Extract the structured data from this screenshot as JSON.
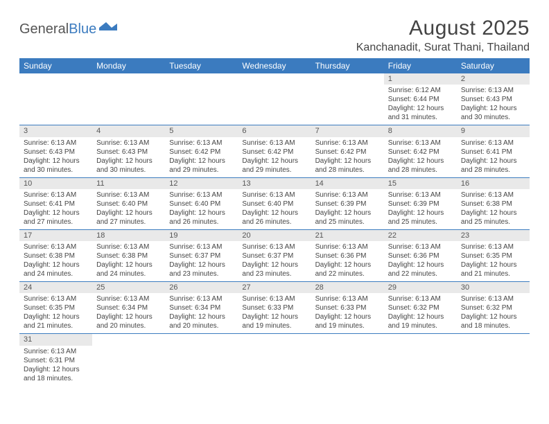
{
  "logo": {
    "part1": "General",
    "part2": "Blue"
  },
  "title": "August 2025",
  "location": "Kanchanadit, Surat Thani, Thailand",
  "weekdays": [
    "Sunday",
    "Monday",
    "Tuesday",
    "Wednesday",
    "Thursday",
    "Friday",
    "Saturday"
  ],
  "colors": {
    "header_bg": "#3b7bbf",
    "header_text": "#ffffff",
    "daynum_bg": "#e9e9e9",
    "rule": "#3b7bbf",
    "text": "#444444",
    "logo_gray": "#555555",
    "logo_blue": "#3b7bbf"
  },
  "weeks": [
    [
      null,
      null,
      null,
      null,
      null,
      {
        "n": "1",
        "sr": "Sunrise: 6:12 AM",
        "ss": "Sunset: 6:44 PM",
        "d1": "Daylight: 12 hours",
        "d2": "and 31 minutes."
      },
      {
        "n": "2",
        "sr": "Sunrise: 6:13 AM",
        "ss": "Sunset: 6:43 PM",
        "d1": "Daylight: 12 hours",
        "d2": "and 30 minutes."
      }
    ],
    [
      {
        "n": "3",
        "sr": "Sunrise: 6:13 AM",
        "ss": "Sunset: 6:43 PM",
        "d1": "Daylight: 12 hours",
        "d2": "and 30 minutes."
      },
      {
        "n": "4",
        "sr": "Sunrise: 6:13 AM",
        "ss": "Sunset: 6:43 PM",
        "d1": "Daylight: 12 hours",
        "d2": "and 30 minutes."
      },
      {
        "n": "5",
        "sr": "Sunrise: 6:13 AM",
        "ss": "Sunset: 6:42 PM",
        "d1": "Daylight: 12 hours",
        "d2": "and 29 minutes."
      },
      {
        "n": "6",
        "sr": "Sunrise: 6:13 AM",
        "ss": "Sunset: 6:42 PM",
        "d1": "Daylight: 12 hours",
        "d2": "and 29 minutes."
      },
      {
        "n": "7",
        "sr": "Sunrise: 6:13 AM",
        "ss": "Sunset: 6:42 PM",
        "d1": "Daylight: 12 hours",
        "d2": "and 28 minutes."
      },
      {
        "n": "8",
        "sr": "Sunrise: 6:13 AM",
        "ss": "Sunset: 6:42 PM",
        "d1": "Daylight: 12 hours",
        "d2": "and 28 minutes."
      },
      {
        "n": "9",
        "sr": "Sunrise: 6:13 AM",
        "ss": "Sunset: 6:41 PM",
        "d1": "Daylight: 12 hours",
        "d2": "and 28 minutes."
      }
    ],
    [
      {
        "n": "10",
        "sr": "Sunrise: 6:13 AM",
        "ss": "Sunset: 6:41 PM",
        "d1": "Daylight: 12 hours",
        "d2": "and 27 minutes."
      },
      {
        "n": "11",
        "sr": "Sunrise: 6:13 AM",
        "ss": "Sunset: 6:40 PM",
        "d1": "Daylight: 12 hours",
        "d2": "and 27 minutes."
      },
      {
        "n": "12",
        "sr": "Sunrise: 6:13 AM",
        "ss": "Sunset: 6:40 PM",
        "d1": "Daylight: 12 hours",
        "d2": "and 26 minutes."
      },
      {
        "n": "13",
        "sr": "Sunrise: 6:13 AM",
        "ss": "Sunset: 6:40 PM",
        "d1": "Daylight: 12 hours",
        "d2": "and 26 minutes."
      },
      {
        "n": "14",
        "sr": "Sunrise: 6:13 AM",
        "ss": "Sunset: 6:39 PM",
        "d1": "Daylight: 12 hours",
        "d2": "and 25 minutes."
      },
      {
        "n": "15",
        "sr": "Sunrise: 6:13 AM",
        "ss": "Sunset: 6:39 PM",
        "d1": "Daylight: 12 hours",
        "d2": "and 25 minutes."
      },
      {
        "n": "16",
        "sr": "Sunrise: 6:13 AM",
        "ss": "Sunset: 6:38 PM",
        "d1": "Daylight: 12 hours",
        "d2": "and 25 minutes."
      }
    ],
    [
      {
        "n": "17",
        "sr": "Sunrise: 6:13 AM",
        "ss": "Sunset: 6:38 PM",
        "d1": "Daylight: 12 hours",
        "d2": "and 24 minutes."
      },
      {
        "n": "18",
        "sr": "Sunrise: 6:13 AM",
        "ss": "Sunset: 6:38 PM",
        "d1": "Daylight: 12 hours",
        "d2": "and 24 minutes."
      },
      {
        "n": "19",
        "sr": "Sunrise: 6:13 AM",
        "ss": "Sunset: 6:37 PM",
        "d1": "Daylight: 12 hours",
        "d2": "and 23 minutes."
      },
      {
        "n": "20",
        "sr": "Sunrise: 6:13 AM",
        "ss": "Sunset: 6:37 PM",
        "d1": "Daylight: 12 hours",
        "d2": "and 23 minutes."
      },
      {
        "n": "21",
        "sr": "Sunrise: 6:13 AM",
        "ss": "Sunset: 6:36 PM",
        "d1": "Daylight: 12 hours",
        "d2": "and 22 minutes."
      },
      {
        "n": "22",
        "sr": "Sunrise: 6:13 AM",
        "ss": "Sunset: 6:36 PM",
        "d1": "Daylight: 12 hours",
        "d2": "and 22 minutes."
      },
      {
        "n": "23",
        "sr": "Sunrise: 6:13 AM",
        "ss": "Sunset: 6:35 PM",
        "d1": "Daylight: 12 hours",
        "d2": "and 21 minutes."
      }
    ],
    [
      {
        "n": "24",
        "sr": "Sunrise: 6:13 AM",
        "ss": "Sunset: 6:35 PM",
        "d1": "Daylight: 12 hours",
        "d2": "and 21 minutes."
      },
      {
        "n": "25",
        "sr": "Sunrise: 6:13 AM",
        "ss": "Sunset: 6:34 PM",
        "d1": "Daylight: 12 hours",
        "d2": "and 20 minutes."
      },
      {
        "n": "26",
        "sr": "Sunrise: 6:13 AM",
        "ss": "Sunset: 6:34 PM",
        "d1": "Daylight: 12 hours",
        "d2": "and 20 minutes."
      },
      {
        "n": "27",
        "sr": "Sunrise: 6:13 AM",
        "ss": "Sunset: 6:33 PM",
        "d1": "Daylight: 12 hours",
        "d2": "and 19 minutes."
      },
      {
        "n": "28",
        "sr": "Sunrise: 6:13 AM",
        "ss": "Sunset: 6:33 PM",
        "d1": "Daylight: 12 hours",
        "d2": "and 19 minutes."
      },
      {
        "n": "29",
        "sr": "Sunrise: 6:13 AM",
        "ss": "Sunset: 6:32 PM",
        "d1": "Daylight: 12 hours",
        "d2": "and 19 minutes."
      },
      {
        "n": "30",
        "sr": "Sunrise: 6:13 AM",
        "ss": "Sunset: 6:32 PM",
        "d1": "Daylight: 12 hours",
        "d2": "and 18 minutes."
      }
    ],
    [
      {
        "n": "31",
        "sr": "Sunrise: 6:13 AM",
        "ss": "Sunset: 6:31 PM",
        "d1": "Daylight: 12 hours",
        "d2": "and 18 minutes."
      },
      null,
      null,
      null,
      null,
      null,
      null
    ]
  ]
}
